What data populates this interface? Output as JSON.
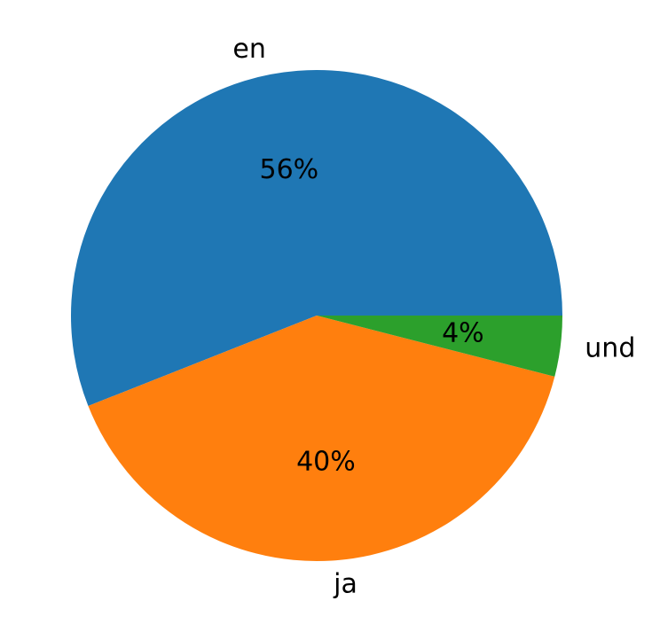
{
  "chart_data": {
    "type": "pie",
    "categories": [
      "en",
      "ja",
      "und"
    ],
    "values": [
      56,
      40,
      4
    ],
    "value_labels": [
      "56%",
      "40%",
      "4%"
    ],
    "colors": [
      "#1f77b4",
      "#ff7f0e",
      "#2ca02c"
    ]
  }
}
